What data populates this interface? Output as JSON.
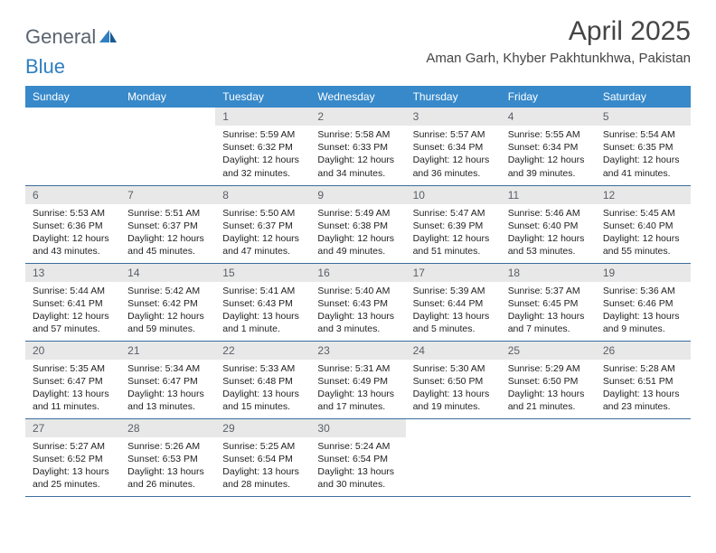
{
  "brand": {
    "part1": "General",
    "part2": "Blue"
  },
  "title": "April 2025",
  "location": "Aman Garh, Khyber Pakhtunkhwa, Pakistan",
  "colors": {
    "header_bg": "#3789ca",
    "header_text": "#ffffff",
    "daynum_bg": "#e8e8e8",
    "daynum_text": "#5a5f66",
    "border": "#3a6e9e",
    "logo_gray": "#5a6470",
    "logo_blue": "#2f7fc1",
    "title_text": "#454545"
  },
  "day_labels": [
    "Sunday",
    "Monday",
    "Tuesday",
    "Wednesday",
    "Thursday",
    "Friday",
    "Saturday"
  ],
  "weeks": [
    [
      null,
      null,
      {
        "n": "1",
        "sr": "5:59 AM",
        "ss": "6:32 PM",
        "dl": "12 hours and 32 minutes."
      },
      {
        "n": "2",
        "sr": "5:58 AM",
        "ss": "6:33 PM",
        "dl": "12 hours and 34 minutes."
      },
      {
        "n": "3",
        "sr": "5:57 AM",
        "ss": "6:34 PM",
        "dl": "12 hours and 36 minutes."
      },
      {
        "n": "4",
        "sr": "5:55 AM",
        "ss": "6:34 PM",
        "dl": "12 hours and 39 minutes."
      },
      {
        "n": "5",
        "sr": "5:54 AM",
        "ss": "6:35 PM",
        "dl": "12 hours and 41 minutes."
      }
    ],
    [
      {
        "n": "6",
        "sr": "5:53 AM",
        "ss": "6:36 PM",
        "dl": "12 hours and 43 minutes."
      },
      {
        "n": "7",
        "sr": "5:51 AM",
        "ss": "6:37 PM",
        "dl": "12 hours and 45 minutes."
      },
      {
        "n": "8",
        "sr": "5:50 AM",
        "ss": "6:37 PM",
        "dl": "12 hours and 47 minutes."
      },
      {
        "n": "9",
        "sr": "5:49 AM",
        "ss": "6:38 PM",
        "dl": "12 hours and 49 minutes."
      },
      {
        "n": "10",
        "sr": "5:47 AM",
        "ss": "6:39 PM",
        "dl": "12 hours and 51 minutes."
      },
      {
        "n": "11",
        "sr": "5:46 AM",
        "ss": "6:40 PM",
        "dl": "12 hours and 53 minutes."
      },
      {
        "n": "12",
        "sr": "5:45 AM",
        "ss": "6:40 PM",
        "dl": "12 hours and 55 minutes."
      }
    ],
    [
      {
        "n": "13",
        "sr": "5:44 AM",
        "ss": "6:41 PM",
        "dl": "12 hours and 57 minutes."
      },
      {
        "n": "14",
        "sr": "5:42 AM",
        "ss": "6:42 PM",
        "dl": "12 hours and 59 minutes."
      },
      {
        "n": "15",
        "sr": "5:41 AM",
        "ss": "6:43 PM",
        "dl": "13 hours and 1 minute."
      },
      {
        "n": "16",
        "sr": "5:40 AM",
        "ss": "6:43 PM",
        "dl": "13 hours and 3 minutes."
      },
      {
        "n": "17",
        "sr": "5:39 AM",
        "ss": "6:44 PM",
        "dl": "13 hours and 5 minutes."
      },
      {
        "n": "18",
        "sr": "5:37 AM",
        "ss": "6:45 PM",
        "dl": "13 hours and 7 minutes."
      },
      {
        "n": "19",
        "sr": "5:36 AM",
        "ss": "6:46 PM",
        "dl": "13 hours and 9 minutes."
      }
    ],
    [
      {
        "n": "20",
        "sr": "5:35 AM",
        "ss": "6:47 PM",
        "dl": "13 hours and 11 minutes."
      },
      {
        "n": "21",
        "sr": "5:34 AM",
        "ss": "6:47 PM",
        "dl": "13 hours and 13 minutes."
      },
      {
        "n": "22",
        "sr": "5:33 AM",
        "ss": "6:48 PM",
        "dl": "13 hours and 15 minutes."
      },
      {
        "n": "23",
        "sr": "5:31 AM",
        "ss": "6:49 PM",
        "dl": "13 hours and 17 minutes."
      },
      {
        "n": "24",
        "sr": "5:30 AM",
        "ss": "6:50 PM",
        "dl": "13 hours and 19 minutes."
      },
      {
        "n": "25",
        "sr": "5:29 AM",
        "ss": "6:50 PM",
        "dl": "13 hours and 21 minutes."
      },
      {
        "n": "26",
        "sr": "5:28 AM",
        "ss": "6:51 PM",
        "dl": "13 hours and 23 minutes."
      }
    ],
    [
      {
        "n": "27",
        "sr": "5:27 AM",
        "ss": "6:52 PM",
        "dl": "13 hours and 25 minutes."
      },
      {
        "n": "28",
        "sr": "5:26 AM",
        "ss": "6:53 PM",
        "dl": "13 hours and 26 minutes."
      },
      {
        "n": "29",
        "sr": "5:25 AM",
        "ss": "6:54 PM",
        "dl": "13 hours and 28 minutes."
      },
      {
        "n": "30",
        "sr": "5:24 AM",
        "ss": "6:54 PM",
        "dl": "13 hours and 30 minutes."
      },
      null,
      null,
      null
    ]
  ],
  "labels": {
    "sunrise": "Sunrise: ",
    "sunset": "Sunset: ",
    "daylight": "Daylight: "
  }
}
